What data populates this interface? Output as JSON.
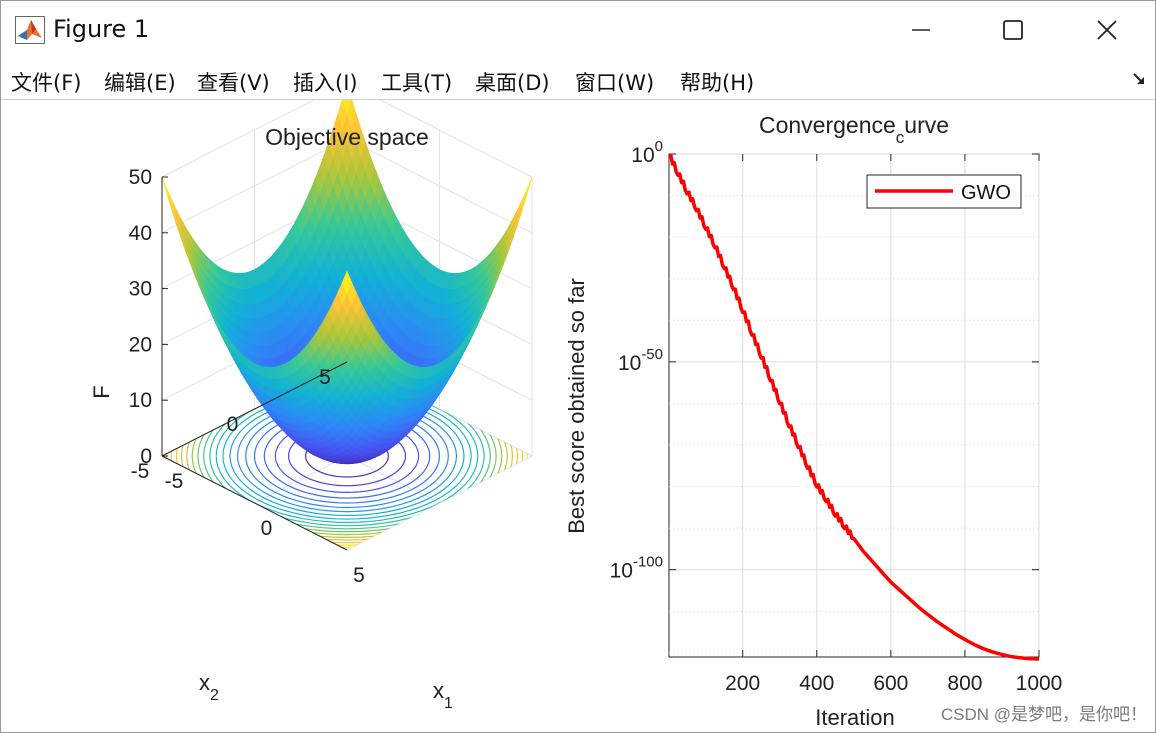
{
  "window": {
    "title": "Figure 1",
    "icon": "matlab-icon"
  },
  "menu": [
    {
      "label": "文件(F)",
      "key": "F"
    },
    {
      "label": "编辑(E)",
      "key": "E"
    },
    {
      "label": "查看(V)",
      "key": "V"
    },
    {
      "label": "插入(I)",
      "key": "I"
    },
    {
      "label": "工具(T)",
      "key": "T"
    },
    {
      "label": "桌面(D)",
      "key": "D"
    },
    {
      "label": "窗口(W)",
      "key": "W"
    },
    {
      "label": "帮助(H)",
      "key": "H"
    }
  ],
  "watermark": "CSDN @是梦吧，是你吧！",
  "chart_data": [
    {
      "type": "surface",
      "title": "Objective space",
      "zlabel": "F",
      "xlabel": "x",
      "xlabel_sub": "1",
      "ylabel": "x",
      "ylabel_sub": "2",
      "function": "F = x1^2 + x2^2",
      "x_range": [
        -5,
        5
      ],
      "y_range": [
        -5,
        5
      ],
      "zlim": [
        0,
        50
      ],
      "z_ticks": [
        "0",
        "10",
        "20",
        "30",
        "40",
        "50"
      ],
      "x_ticks": [
        "-5",
        "0",
        "5"
      ],
      "y_ticks": [
        "-5",
        "0",
        "5"
      ],
      "contours_on_floor": true,
      "colormap": "parula",
      "grid": true
    },
    {
      "type": "line",
      "title_main": "Convergence",
      "title_sub": "c",
      "title_rest": "urve",
      "xlabel": "Iteration",
      "ylabel": "Best score obtained so far",
      "xlim": [
        1,
        1000
      ],
      "x_ticks": [
        "200",
        "400",
        "600",
        "800",
        "1000"
      ],
      "x_tick_values": [
        200,
        400,
        600,
        800,
        1000
      ],
      "y_scale": "log",
      "ylim_exponent": [
        -121,
        0
      ],
      "y_ticks": [
        {
          "base": "10",
          "exp": "0",
          "value_exp": 0
        },
        {
          "base": "10",
          "exp": "-50",
          "value_exp": -50
        },
        {
          "base": "10",
          "exp": "-100",
          "value_exp": -100
        }
      ],
      "grid": true,
      "legend": {
        "position": "top-right",
        "entries": [
          "GWO"
        ]
      },
      "series": [
        {
          "name": "GWO",
          "color": "#ff0000",
          "x": [
            1,
            25,
            50,
            75,
            100,
            125,
            150,
            175,
            200,
            225,
            250,
            275,
            300,
            325,
            350,
            375,
            400,
            425,
            450,
            475,
            500,
            525,
            550,
            575,
            600,
            625,
            650,
            675,
            700,
            725,
            750,
            775,
            800,
            825,
            850,
            875,
            900,
            925,
            950,
            975,
            1000
          ],
          "log10_y": [
            0,
            -4.5,
            -9,
            -13,
            -17.5,
            -22,
            -27,
            -32,
            -37.5,
            -43,
            -48.5,
            -54,
            -59.5,
            -65,
            -70,
            -75,
            -79.5,
            -83,
            -86.5,
            -89.5,
            -92.5,
            -95.5,
            -98,
            -100.5,
            -103,
            -105,
            -107,
            -109,
            -110.8,
            -112.5,
            -114,
            -115.5,
            -116.8,
            -118,
            -119,
            -119.8,
            -120.4,
            -120.9,
            -121.2,
            -121.4,
            -121.5
          ]
        }
      ]
    }
  ]
}
